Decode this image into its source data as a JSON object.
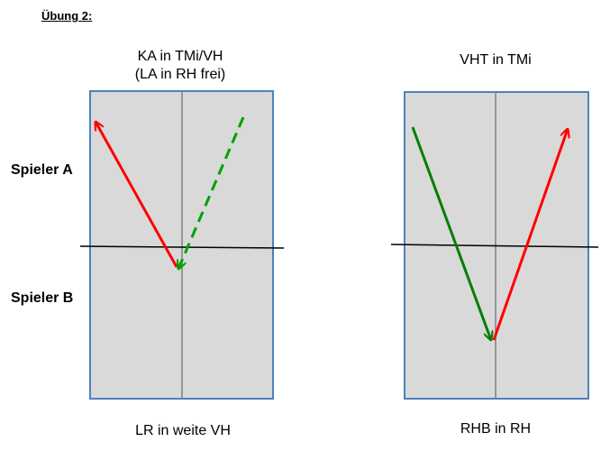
{
  "page": {
    "title": "Übung 2:"
  },
  "rows": {
    "player_a": "Spieler A",
    "player_b": "Spieler B"
  },
  "diagrams": [
    {
      "top_caption_line1": "KA in TMi/VH",
      "top_caption_line2": "(LA in RH frei)",
      "bottom_caption": "LR in weite VH"
    },
    {
      "top_caption_line1": "VHT in TMi",
      "top_caption_line2": "",
      "bottom_caption": "RHB in RH"
    }
  ],
  "colors": {
    "table_fill": "#d9d9d9",
    "table_border": "#4f81bd",
    "center_line": "#808080",
    "net": "#000000",
    "red_arrow": "#ff0000",
    "green_arrow": "#008000",
    "green_dashed_arrow": "#00a000"
  }
}
